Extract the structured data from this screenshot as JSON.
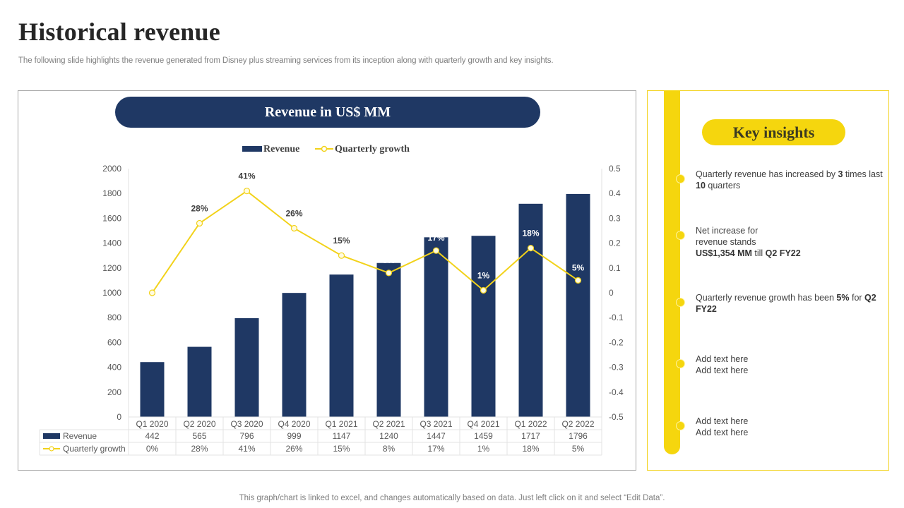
{
  "header": {
    "title": "Historical revenue",
    "subtitle": "The following slide highlights the revenue generated from Disney plus streaming services from its inception along with quarterly growth and key insights."
  },
  "colors": {
    "navy": "#1f3864",
    "yellow": "#f5d60e",
    "line_yellow": "#f2d21a",
    "text_dark": "#404040",
    "text_gray": "#7f7f7f"
  },
  "chart_panel": {
    "title": "Revenue in US$ MM"
  },
  "chart_data": {
    "type": "bar",
    "title": "Revenue in US$ MM",
    "categories": [
      "Q1 2020",
      "Q2 2020",
      "Q3 2020",
      "Q4 2020",
      "Q1 2021",
      "Q2 2021",
      "Q3 2021",
      "Q4 2021",
      "Q1 2022",
      "Q2 2022"
    ],
    "series": [
      {
        "name": "Revenue",
        "type": "bar",
        "axis": "left",
        "color": "#1f3864",
        "values": [
          442,
          565,
          796,
          999,
          1147,
          1240,
          1447,
          1459,
          1717,
          1796
        ],
        "table_labels": [
          "442",
          "565",
          "796",
          "999",
          "1147",
          "1240",
          "1447",
          "1459",
          "1717",
          "1796"
        ]
      },
      {
        "name": "Quarterly growth",
        "type": "line",
        "axis": "right",
        "color": "#f2d21a",
        "values": [
          0,
          0.28,
          0.41,
          0.26,
          0.15,
          0.08,
          0.17,
          0.01,
          0.18,
          0.05
        ],
        "data_labels": [
          "",
          "28%",
          "41%",
          "26%",
          "15%",
          "8%",
          "17%",
          "1%",
          "18%",
          "5%"
        ],
        "table_labels": [
          "0%",
          "28%",
          "41%",
          "26%",
          "15%",
          "8%",
          "17%",
          "1%",
          "18%",
          "5%"
        ]
      }
    ],
    "y_left": {
      "ylim": [
        0,
        2000
      ],
      "ticks": [
        "0",
        "200",
        "400",
        "600",
        "800",
        "1000",
        "1200",
        "1400",
        "1600",
        "1800",
        "2000"
      ]
    },
    "y_right": {
      "ylim": [
        -0.5,
        0.5
      ],
      "ticks": [
        "-0.5",
        "-0.4",
        "-0.3",
        "-0.2",
        "-0.1",
        "0",
        "0.1",
        "0.2",
        "0.3",
        "0.4",
        "0.5"
      ]
    },
    "legend": {
      "position": "top",
      "entries": [
        "Revenue",
        "Quarterly growth"
      ]
    },
    "data_table": true,
    "grid": false,
    "xlabel": "",
    "ylabel": ""
  },
  "insights": {
    "title": "Key insights",
    "items": [
      {
        "html": "Quarterly revenue has increased by <b>3</b> times last <b>10</b> quarters"
      },
      {
        "html": "Net increase for<br>revenue stands<br><b>US$1,354 MM</b> till <b>Q2 FY22</b>"
      },
      {
        "html": "Quarterly revenue growth has been <b>5%</b> for <b>Q2 FY22</b>"
      },
      {
        "html": "Add text here<br>Add text here"
      },
      {
        "html": "Add text here<br>Add text here"
      }
    ]
  },
  "footer": {
    "note": "This graph/chart is linked to excel, and changes automatically based on data. Just left click on it and select “Edit Data”."
  }
}
